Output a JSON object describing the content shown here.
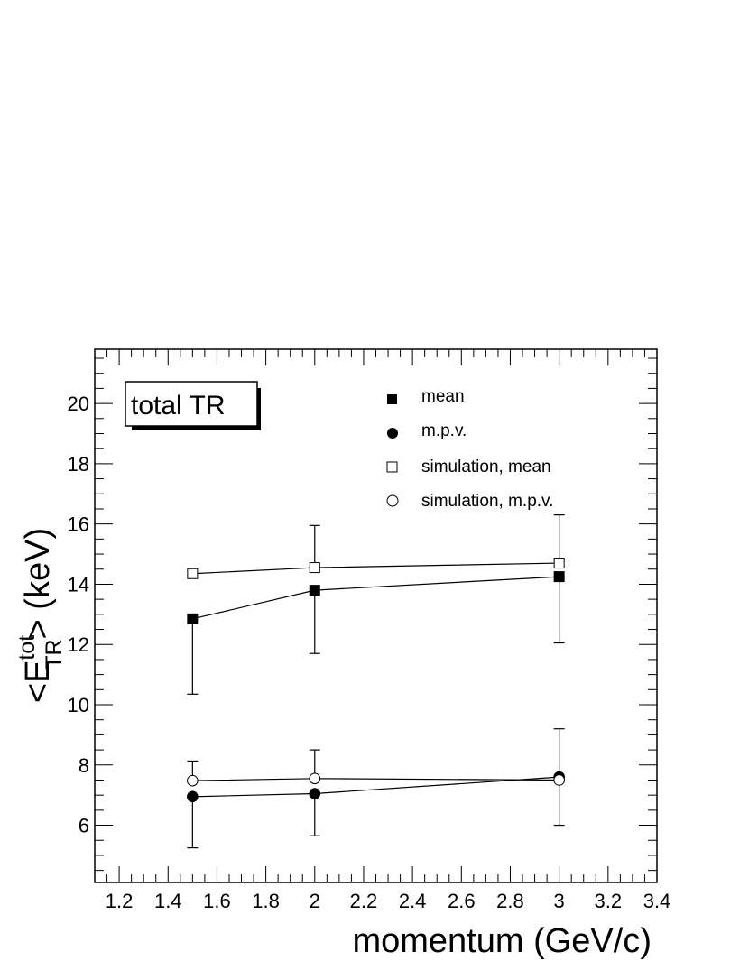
{
  "chart_data": {
    "type": "scatter",
    "title": "",
    "xlabel": "momentum (GeV/c)",
    "ylabel_main": "<E",
    "ylabel_sup": "tot",
    "ylabel_sub": "TR",
    "ylabel_tail": "> (keV)",
    "xlim": [
      1.1,
      3.4
    ],
    "ylim": [
      4.1,
      21.8
    ],
    "x_ticks": [
      1.2,
      1.4,
      1.6,
      1.8,
      2,
      2.2,
      2.4,
      2.6,
      2.8,
      3,
      3.2,
      3.4
    ],
    "x_tick_labels": [
      "1.2",
      "1.4",
      "1.6",
      "1.8",
      "2",
      "2.2",
      "2.4",
      "2.6",
      "2.8",
      "3",
      "3.2",
      "3.4"
    ],
    "y_ticks": [
      6,
      8,
      10,
      12,
      14,
      16,
      18,
      20
    ],
    "y_tick_labels": [
      "6",
      "8",
      "10",
      "12",
      "14",
      "16",
      "18",
      "20"
    ],
    "grid": false,
    "legend_placement": "top-right",
    "text_box": "total TR",
    "series": [
      {
        "name": "mean",
        "marker": "filled-square",
        "x": [
          1.5,
          2,
          3
        ],
        "y": [
          12.85,
          13.8,
          14.25
        ],
        "err_low": [
          2.5,
          2.1,
          2.2
        ],
        "err_high": [
          0,
          0,
          0
        ]
      },
      {
        "name": "m.p.v.",
        "marker": "filled-circle",
        "x": [
          1.5,
          2,
          3
        ],
        "y": [
          6.95,
          7.05,
          7.6
        ],
        "err_low": [
          1.7,
          1.4,
          1.6
        ],
        "err_high": [
          0,
          0,
          0
        ]
      },
      {
        "name": "simulation, mean",
        "marker": "open-square",
        "x": [
          1.5,
          2,
          3
        ],
        "y": [
          14.35,
          14.55,
          14.7
        ],
        "err_low": [
          0,
          0,
          0
        ],
        "err_high": [
          0,
          1.4,
          1.6
        ]
      },
      {
        "name": "simulation, m.p.v.",
        "marker": "open-circle",
        "x": [
          1.5,
          2,
          3
        ],
        "y": [
          7.48,
          7.55,
          7.5
        ],
        "err_low": [
          0,
          0,
          0
        ],
        "err_high": [
          0.65,
          0.95,
          1.7
        ]
      }
    ]
  }
}
